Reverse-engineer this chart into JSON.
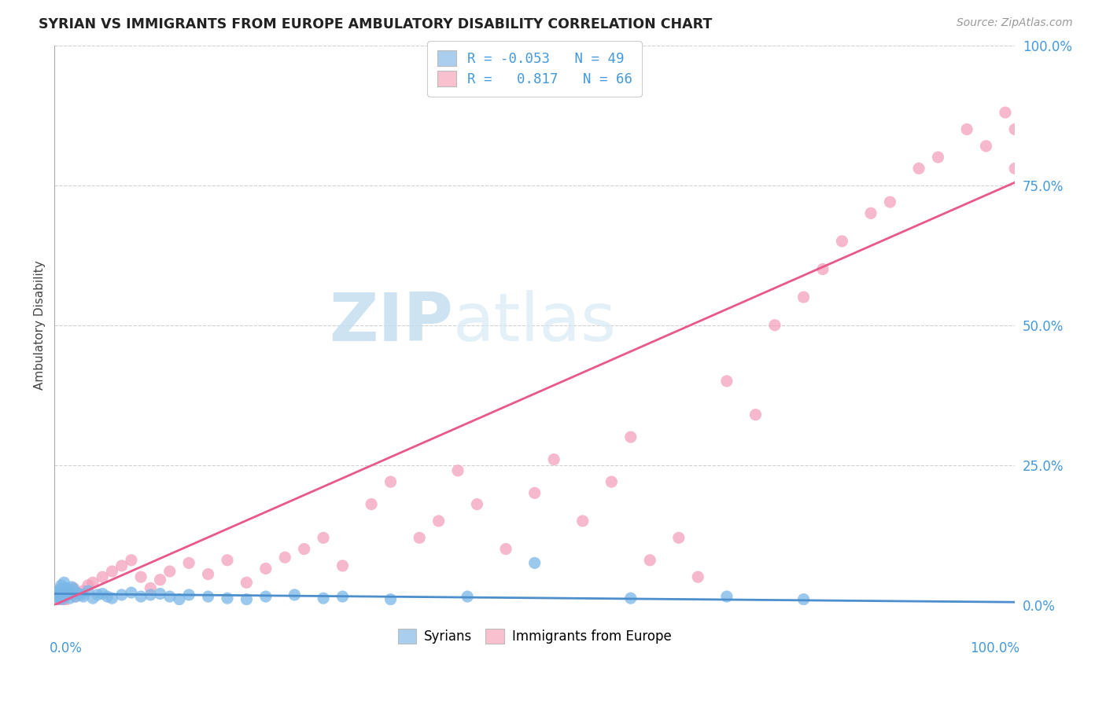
{
  "title": "SYRIAN VS IMMIGRANTS FROM EUROPE AMBULATORY DISABILITY CORRELATION CHART",
  "source": "Source: ZipAtlas.com",
  "ylabel": "Ambulatory Disability",
  "legend_label1": "Syrians",
  "legend_label2": "Immigrants from Europe",
  "R1": -0.053,
  "N1": 49,
  "R2": 0.817,
  "N2": 66,
  "color_syrians": "#7ab8e8",
  "color_europe": "#f4a0bb",
  "color_syrians_fill": "#aacfee",
  "color_europe_fill": "#f9c0d0",
  "color_trend_syrians": "#4d8fcc",
  "color_trend_europe": "#e8588a",
  "syrians_x": [
    0.1,
    0.2,
    0.3,
    0.4,
    0.5,
    0.6,
    0.7,
    0.8,
    0.9,
    1.0,
    1.1,
    1.2,
    1.3,
    1.4,
    1.5,
    1.6,
    1.8,
    2.0,
    2.2,
    2.5,
    2.8,
    3.0,
    3.5,
    4.0,
    4.5,
    5.0,
    5.5,
    6.0,
    7.0,
    8.0,
    9.0,
    10.0,
    11.0,
    12.0,
    13.0,
    14.0,
    16.0,
    18.0,
    20.0,
    22.0,
    25.0,
    28.0,
    30.0,
    35.0,
    43.0,
    50.0,
    60.0,
    70.0,
    78.0
  ],
  "syrians_y": [
    1.5,
    2.0,
    1.8,
    2.5,
    1.2,
    2.8,
    3.5,
    1.0,
    2.2,
    4.0,
    1.5,
    3.0,
    2.2,
    1.8,
    2.5,
    1.2,
    3.2,
    2.8,
    1.5,
    2.0,
    1.8,
    1.5,
    2.5,
    1.2,
    1.8,
    2.0,
    1.5,
    1.2,
    1.8,
    2.2,
    1.5,
    1.8,
    2.0,
    1.5,
    1.0,
    1.8,
    1.5,
    1.2,
    1.0,
    1.5,
    1.8,
    1.2,
    1.5,
    1.0,
    1.5,
    7.5,
    1.2,
    1.5,
    1.0
  ],
  "europe_x": [
    0.1,
    0.2,
    0.3,
    0.4,
    0.5,
    0.6,
    0.7,
    0.8,
    0.9,
    1.0,
    1.2,
    1.5,
    1.8,
    2.0,
    2.2,
    2.5,
    3.0,
    3.5,
    4.0,
    5.0,
    6.0,
    7.0,
    8.0,
    9.0,
    10.0,
    11.0,
    12.0,
    14.0,
    16.0,
    18.0,
    20.0,
    22.0,
    24.0,
    26.0,
    28.0,
    30.0,
    33.0,
    35.0,
    38.0,
    40.0,
    42.0,
    44.0,
    47.0,
    50.0,
    52.0,
    55.0,
    58.0,
    60.0,
    62.0,
    65.0,
    67.0,
    70.0,
    73.0,
    75.0,
    78.0,
    80.0,
    82.0,
    85.0,
    87.0,
    90.0,
    92.0,
    95.0,
    97.0,
    99.0,
    100.0,
    100.0
  ],
  "europe_y": [
    0.5,
    1.0,
    1.5,
    2.0,
    0.8,
    1.2,
    0.5,
    1.8,
    0.3,
    1.5,
    2.2,
    1.8,
    2.5,
    3.0,
    1.5,
    2.0,
    2.5,
    3.5,
    4.0,
    5.0,
    6.0,
    7.0,
    8.0,
    5.0,
    3.0,
    4.5,
    6.0,
    7.5,
    5.5,
    8.0,
    4.0,
    6.5,
    8.5,
    10.0,
    12.0,
    7.0,
    18.0,
    22.0,
    12.0,
    15.0,
    24.0,
    18.0,
    10.0,
    20.0,
    26.0,
    15.0,
    22.0,
    30.0,
    8.0,
    12.0,
    5.0,
    40.0,
    34.0,
    50.0,
    55.0,
    60.0,
    65.0,
    70.0,
    72.0,
    78.0,
    80.0,
    85.0,
    82.0,
    88.0,
    78.0,
    85.0
  ],
  "xlim": [
    0,
    100
  ],
  "ylim": [
    0,
    100
  ],
  "background_color": "#ffffff",
  "grid_color": "#cccccc",
  "ytick_labels": [
    "0.0%",
    "25.0%",
    "50.0%",
    "75.0%",
    "100.0%"
  ],
  "ytick_vals": [
    0,
    25,
    50,
    75,
    100
  ],
  "xtick_label_left": "0.0%",
  "xtick_label_right": "100.0%"
}
